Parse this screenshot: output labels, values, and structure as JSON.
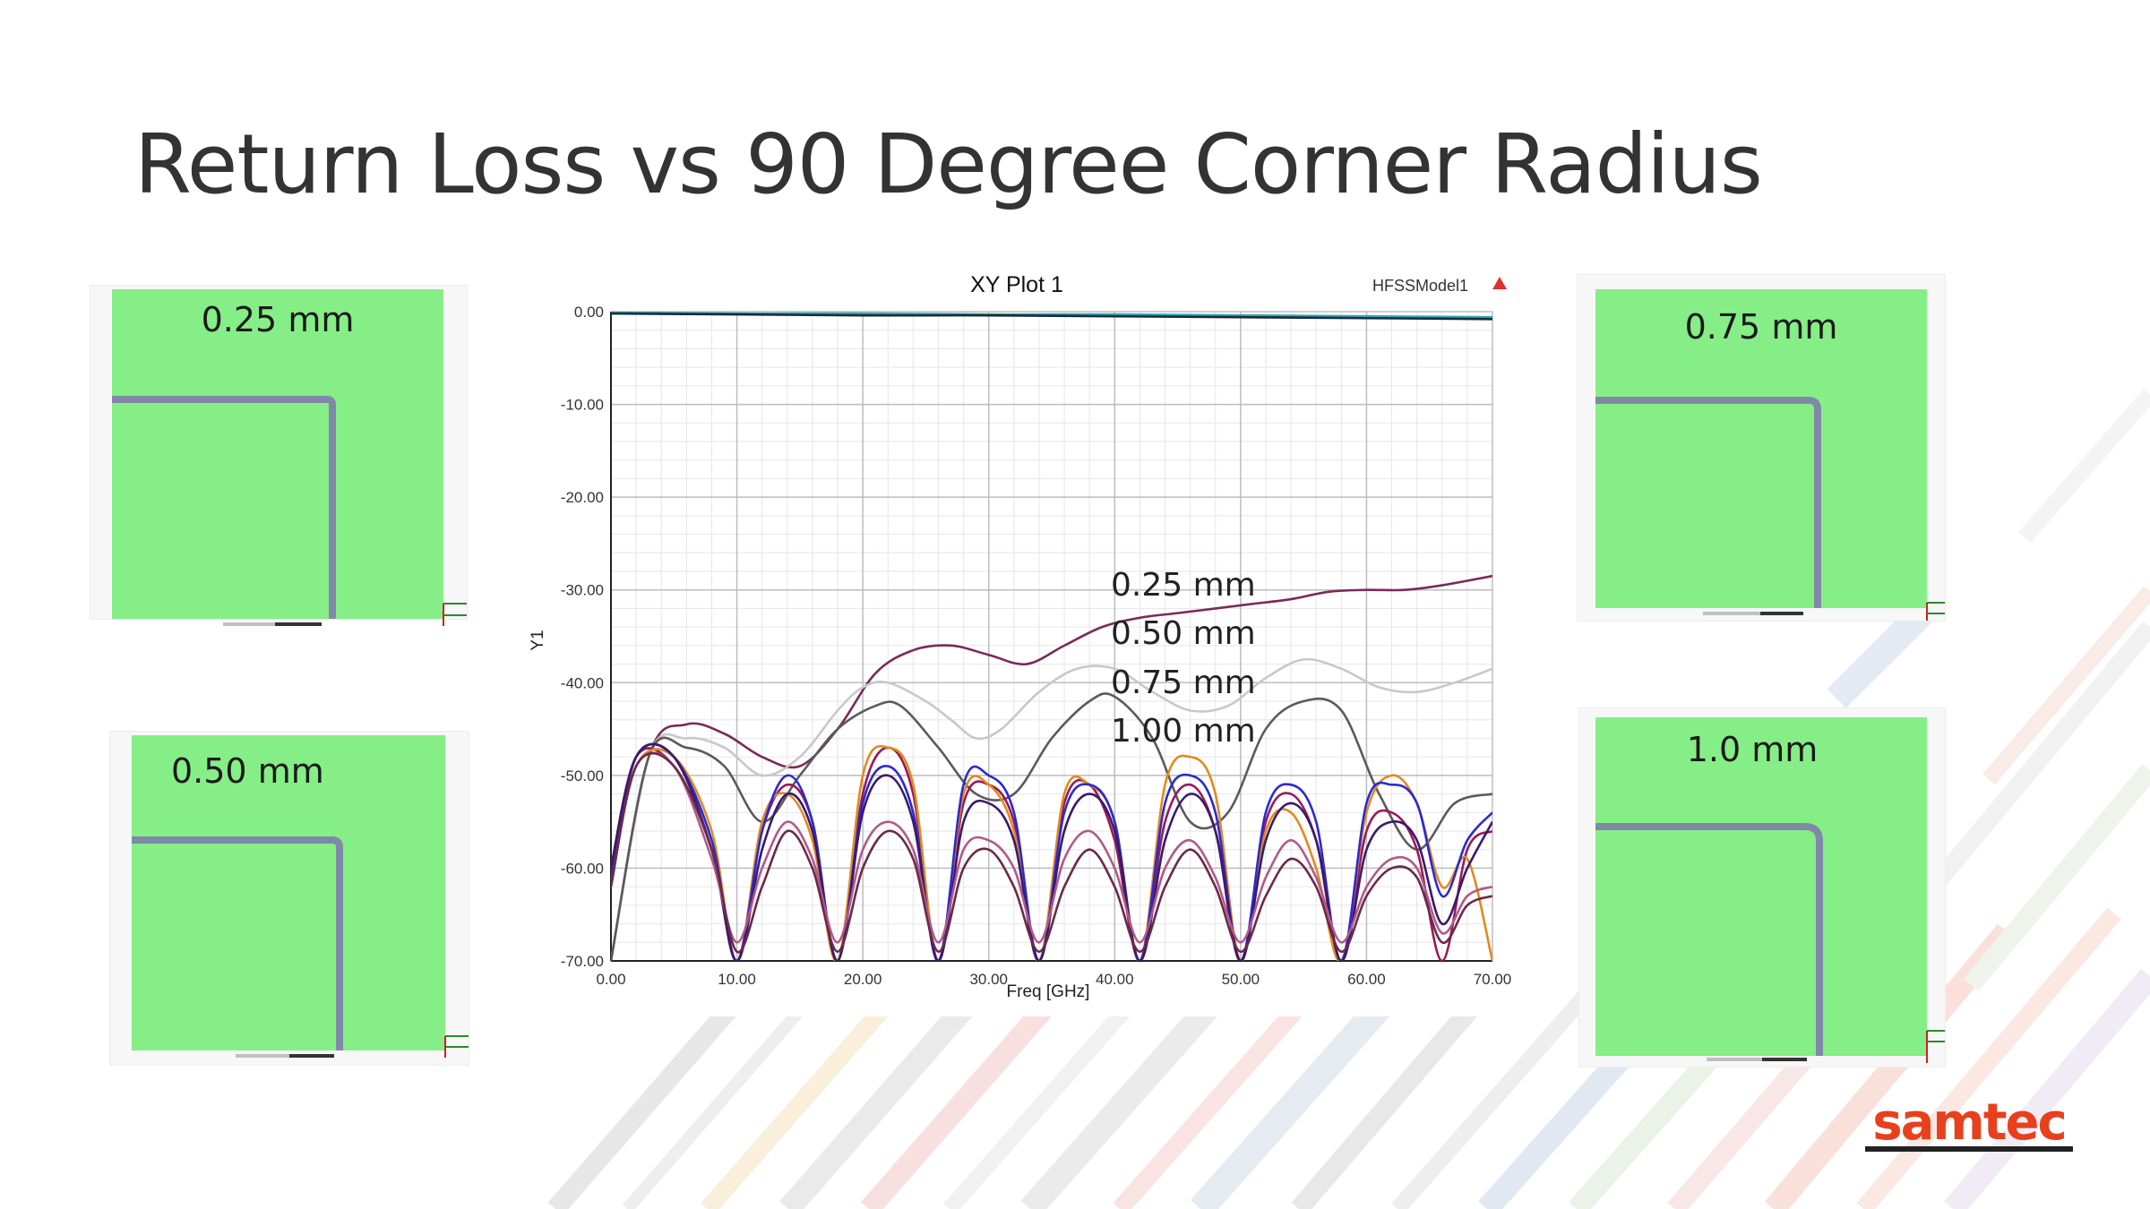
{
  "slide": {
    "title": "Return Loss vs 90 Degree Corner Radius",
    "logo_text": "samtec",
    "colors": {
      "accent_green": "#86ee86",
      "trace": "#8088a8",
      "logo": "#e8401c"
    }
  },
  "panels": [
    {
      "label": "0.25 mm",
      "radius_mm": 0.25
    },
    {
      "label": "0.50 mm",
      "radius_mm": 0.5
    },
    {
      "label": "0.75 mm",
      "radius_mm": 0.75
    },
    {
      "label": "1.0 mm",
      "radius_mm": 1.0
    }
  ],
  "chart_data": {
    "type": "line",
    "title": "XY Plot 1",
    "model_label": "HFSSModel1",
    "xlabel": "Freq [GHz]",
    "ylabel": "Y1",
    "xlim": [
      0,
      70
    ],
    "ylim": [
      -70,
      0
    ],
    "xticks": [
      "0.00",
      "10.00",
      "20.00",
      "30.00",
      "40.00",
      "50.00",
      "60.00",
      "70.00"
    ],
    "yticks": [
      "0.00",
      "-10.00",
      "-20.00",
      "-30.00",
      "-40.00",
      "-50.00",
      "-60.00",
      "-70.00"
    ],
    "grid": true,
    "annotations": [
      "0.25 mm",
      "0.50 mm",
      "0.75 mm",
      "1.00 mm"
    ],
    "series": [
      {
        "color": "#2aa8b8",
        "x": [
          0,
          10,
          20,
          30,
          40,
          50,
          60,
          70
        ],
        "y": [
          -0.1,
          -0.2,
          -0.2,
          -0.3,
          -0.3,
          -0.4,
          -0.5,
          -0.6
        ]
      },
      {
        "color": "#1a2a3a",
        "x": [
          0,
          10,
          20,
          30,
          40,
          50,
          60,
          70
        ],
        "y": [
          -0.2,
          -0.3,
          -0.4,
          -0.4,
          -0.5,
          -0.6,
          -0.7,
          -0.8
        ]
      },
      {
        "color": "#7a2a5a",
        "x": [
          0,
          3,
          6,
          9,
          12,
          15,
          18,
          21,
          24,
          27,
          30,
          33,
          36,
          39,
          42,
          45,
          48,
          51,
          54,
          57,
          60,
          63,
          66,
          70
        ],
        "y": [
          -70,
          -48,
          -44.5,
          -45.5,
          -48,
          -49,
          -45,
          -39,
          -36.5,
          -36,
          -37,
          -38,
          -36,
          -34,
          -33,
          -32.5,
          -32,
          -31.5,
          -31,
          -30.2,
          -30,
          -30,
          -29.5,
          -28.5
        ]
      },
      {
        "color": "#c8c8c8",
        "x": [
          0,
          3,
          6,
          9,
          12,
          15,
          18,
          20,
          22,
          25,
          27,
          29,
          31,
          34,
          37,
          40,
          43,
          46,
          49,
          52,
          55,
          58,
          61,
          64,
          67,
          70
        ],
        "y": [
          -70,
          -48,
          -46,
          -47,
          -50,
          -48,
          -43,
          -40.5,
          -40,
          -42,
          -44,
          -46,
          -45,
          -41,
          -38.5,
          -38.5,
          -41,
          -43,
          -42.5,
          -39.5,
          -37.5,
          -38.5,
          -40.5,
          -41,
          -40,
          -38.5
        ]
      },
      {
        "color": "#5a5a5a",
        "x": [
          0,
          3,
          6,
          9,
          12,
          15,
          18,
          21,
          23,
          26,
          29,
          32,
          35,
          38,
          40,
          43,
          46,
          49,
          52,
          55,
          58,
          61,
          64,
          67,
          70
        ],
        "y": [
          -70,
          -48,
          -47,
          -49,
          -55,
          -50,
          -45,
          -42.5,
          -42.5,
          -47,
          -52,
          -52,
          -46,
          -42,
          -41.5,
          -46,
          -55,
          -54,
          -45,
          -42,
          -43,
          -52,
          -58,
          -53,
          -52
        ]
      },
      {
        "color": "#9a1a5a",
        "x": [
          0,
          2,
          5,
          8,
          10,
          12,
          14,
          16,
          18,
          20,
          22,
          24,
          26,
          28,
          30,
          32,
          34,
          36,
          38,
          40,
          42,
          44,
          46,
          48,
          50,
          52,
          54,
          56,
          58,
          60,
          62,
          64,
          66,
          68,
          70
        ],
        "y": [
          -60,
          -48,
          -49,
          -58,
          -70,
          -56,
          -51,
          -55,
          -70,
          -52,
          -47,
          -52,
          -70,
          -53,
          -51,
          -55,
          -70,
          -53,
          -51,
          -57,
          -70,
          -55,
          -51,
          -56,
          -70,
          -55,
          -52,
          -57,
          -70,
          -56,
          -54,
          -58,
          -70,
          -58,
          -56
        ]
      },
      {
        "color": "#e08a20",
        "x": [
          0,
          2,
          5,
          8,
          10,
          12,
          14,
          16,
          18,
          20,
          22,
          24,
          26,
          28,
          30,
          32,
          34,
          36,
          38,
          40,
          42,
          44,
          46,
          48,
          50,
          52,
          54,
          56,
          58,
          60,
          62,
          64,
          66,
          68,
          70
        ],
        "y": [
          -62,
          -49,
          -48,
          -56,
          -70,
          -55,
          -52,
          -57,
          -70,
          -50,
          -47,
          -51,
          -70,
          -52,
          -51,
          -56,
          -70,
          -52,
          -51,
          -55,
          -70,
          -51,
          -48,
          -52,
          -70,
          -56,
          -54,
          -60,
          -70,
          -54,
          -50,
          -53,
          -62,
          -59,
          -70
        ]
      },
      {
        "color": "#2a2ad0",
        "x": [
          0,
          2,
          5,
          8,
          10,
          12,
          14,
          16,
          18,
          20,
          22,
          24,
          26,
          28,
          30,
          32,
          34,
          36,
          38,
          40,
          42,
          44,
          46,
          48,
          50,
          52,
          54,
          56,
          58,
          60,
          62,
          64,
          66,
          68,
          70
        ],
        "y": [
          -61,
          -48,
          -48,
          -57,
          -70,
          -56,
          -50,
          -55,
          -70,
          -53,
          -49,
          -54,
          -70,
          -51,
          -50,
          -54,
          -70,
          -54,
          -51,
          -55,
          -70,
          -53,
          -50,
          -54,
          -70,
          -54,
          -51,
          -55,
          -70,
          -53,
          -51,
          -53,
          -63,
          -57,
          -54
        ]
      },
      {
        "color": "#3a1a6a",
        "x": [
          0,
          2,
          5,
          8,
          10,
          12,
          14,
          16,
          18,
          20,
          22,
          24,
          26,
          28,
          30,
          32,
          34,
          36,
          38,
          40,
          42,
          44,
          46,
          48,
          50,
          52,
          54,
          56,
          58,
          60,
          62,
          64,
          66,
          68,
          70
        ],
        "y": [
          -60,
          -48,
          -48,
          -58,
          -70,
          -58,
          -52,
          -56,
          -70,
          -54,
          -50,
          -55,
          -70,
          -55,
          -53,
          -57,
          -70,
          -56,
          -52,
          -56,
          -70,
          -57,
          -52,
          -56,
          -70,
          -57,
          -53,
          -57,
          -70,
          -58,
          -55,
          -57,
          -66,
          -60,
          -55
        ]
      },
      {
        "color": "#b05a8a",
        "x": [
          0,
          2,
          5,
          8,
          10,
          12,
          14,
          16,
          18,
          20,
          22,
          24,
          26,
          28,
          30,
          32,
          34,
          36,
          38,
          40,
          42,
          44,
          46,
          48,
          50,
          52,
          54,
          56,
          58,
          60,
          62,
          64,
          66,
          68,
          70
        ],
        "y": [
          -62,
          -49,
          -49,
          -59,
          -68,
          -60,
          -55,
          -59,
          -68,
          -58,
          -55,
          -58,
          -68,
          -58,
          -57,
          -60,
          -68,
          -59,
          -56,
          -60,
          -68,
          -60,
          -57,
          -61,
          -68,
          -61,
          -57,
          -61,
          -68,
          -62,
          -59,
          -60,
          -67,
          -63,
          -62
        ]
      },
      {
        "color": "#6a2a4a",
        "x": [
          0,
          2,
          5,
          8,
          10,
          12,
          14,
          16,
          18,
          20,
          22,
          24,
          26,
          28,
          30,
          32,
          34,
          36,
          38,
          40,
          42,
          44,
          46,
          48,
          50,
          52,
          54,
          56,
          58,
          60,
          62,
          64,
          66,
          68,
          70
        ],
        "y": [
          -62,
          -49,
          -49,
          -58,
          -69,
          -62,
          -56,
          -60,
          -69,
          -60,
          -56,
          -59,
          -69,
          -60,
          -58,
          -62,
          -69,
          -62,
          -58,
          -62,
          -69,
          -62,
          -58,
          -62,
          -69,
          -63,
          -59,
          -62,
          -69,
          -63,
          -60,
          -61,
          -68,
          -64,
          -63
        ]
      }
    ]
  }
}
